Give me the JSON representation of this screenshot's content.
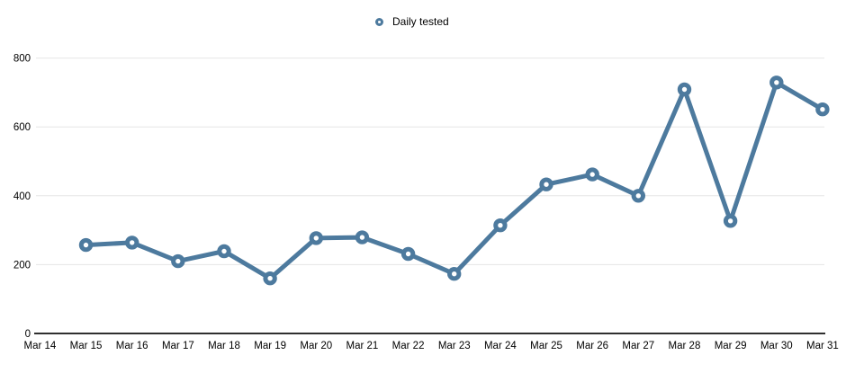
{
  "legend": {
    "position": "top-center",
    "items": [
      {
        "label": "Daily tested"
      }
    ]
  },
  "colors": {
    "series": "#4d7a9e",
    "marker_fill": "#ffffff",
    "grid": "#e6e6e6",
    "axis": "#2f2f2f",
    "text": "#000000",
    "background": "#ffffff"
  },
  "chart_data": {
    "type": "line",
    "title": "",
    "xlabel": "",
    "ylabel": "",
    "grid": true,
    "legend_position": "top-center",
    "ylim": [
      0,
      800
    ],
    "yticks": [
      0,
      200,
      400,
      600,
      800
    ],
    "categories": [
      "Mar 14",
      "Mar 15",
      "Mar 16",
      "Mar 17",
      "Mar 18",
      "Mar 19",
      "Mar 20",
      "Mar 21",
      "Mar 22",
      "Mar 23",
      "Mar 24",
      "Mar 25",
      "Mar 26",
      "Mar 27",
      "Mar 28",
      "Mar 29",
      "Mar 30",
      "Mar 31"
    ],
    "series": [
      {
        "name": "Daily tested",
        "values": [
          null,
          257,
          264,
          210,
          239,
          160,
          277,
          279,
          231,
          173,
          314,
          433,
          462,
          400,
          709,
          327,
          729,
          651
        ]
      }
    ]
  }
}
